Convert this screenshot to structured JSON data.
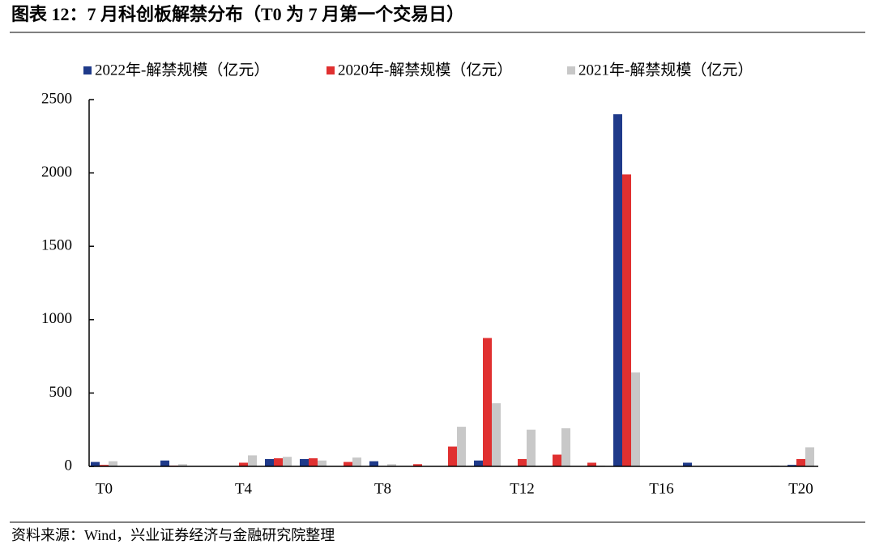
{
  "title": "图表 12：7 月科创板解禁分布（T0 为 7 月第一个交易日）",
  "source": "资料来源：Wind，兴业证券经济与金融研究院整理",
  "chart_data": {
    "type": "bar",
    "categories": [
      "T0",
      null,
      null,
      null,
      "T4",
      null,
      null,
      null,
      "T8",
      null,
      null,
      null,
      "T12",
      null,
      null,
      null,
      "T16",
      null,
      null,
      null,
      "T20"
    ],
    "series": [
      {
        "name": "2022年-解禁规模（亿元）",
        "color": "#1f3a8a",
        "values": [
          30,
          0,
          40,
          0,
          0,
          50,
          50,
          0,
          35,
          0,
          0,
          40,
          0,
          0,
          0,
          2400,
          0,
          25,
          0,
          0,
          10
        ]
      },
      {
        "name": "2020年-解禁规模（亿元）",
        "color": "#e03030",
        "values": [
          10,
          0,
          5,
          0,
          25,
          55,
          55,
          30,
          0,
          15,
          135,
          875,
          50,
          80,
          25,
          1990,
          0,
          0,
          0,
          0,
          50
        ]
      },
      {
        "name": "2021年-解禁规模（亿元）",
        "color": "#c8c8c8",
        "values": [
          35,
          0,
          15,
          0,
          75,
          65,
          40,
          60,
          15,
          0,
          270,
          430,
          250,
          260,
          5,
          640,
          0,
          0,
          0,
          5,
          130
        ]
      }
    ],
    "ylim": [
      0,
      2500
    ],
    "yticks": [
      0,
      500,
      1000,
      1500,
      2000,
      2500
    ]
  }
}
